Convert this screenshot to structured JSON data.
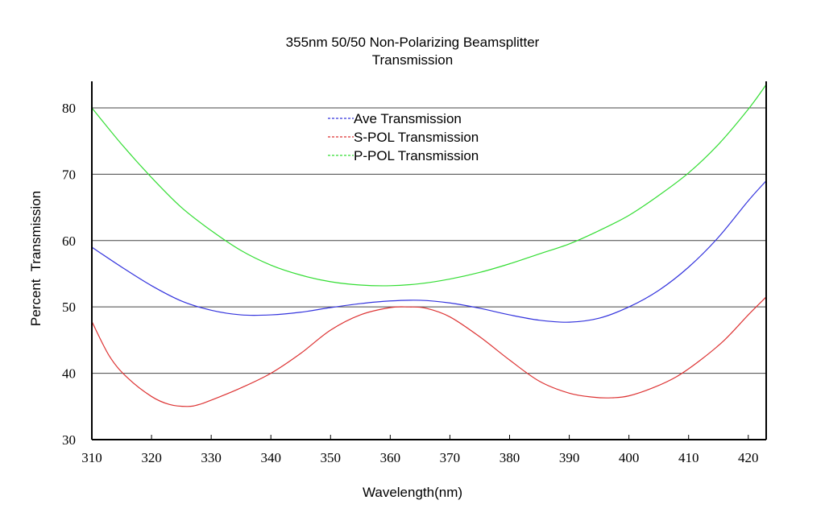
{
  "chart_data": {
    "type": "line",
    "title": "355nm 50/50 Non-Polarizing Beamsplitter",
    "subtitle": "Transmission",
    "xlabel": "Wavelength(nm)",
    "ylabel": "Percent  Transmission",
    "xlim": [
      310,
      423
    ],
    "ylim": [
      30,
      84
    ],
    "xticks": [
      310,
      320,
      330,
      340,
      350,
      360,
      370,
      380,
      390,
      400,
      410,
      420
    ],
    "yticks": [
      30,
      40,
      50,
      60,
      70,
      80
    ],
    "grid": "horizontal",
    "legend_position": "top-center",
    "series": [
      {
        "name": "Ave Transmission",
        "color": "#3333dd",
        "x": [
          310,
          315,
          320,
          325,
          330,
          335,
          340,
          345,
          350,
          355,
          360,
          365,
          370,
          375,
          380,
          385,
          390,
          395,
          400,
          405,
          410,
          415,
          420,
          423
        ],
        "y": [
          59.0,
          56.0,
          53.2,
          50.9,
          49.5,
          48.8,
          48.8,
          49.2,
          49.9,
          50.5,
          50.9,
          51.0,
          50.6,
          49.8,
          48.8,
          48.0,
          47.7,
          48.3,
          50.0,
          52.5,
          56.0,
          60.5,
          66.0,
          69.0
        ]
      },
      {
        "name": "S-POL Transmission",
        "color": "#dd3333",
        "x": [
          310,
          313,
          316,
          320,
          323,
          326,
          328,
          331,
          335,
          340,
          345,
          350,
          355,
          360,
          363,
          366,
          370,
          375,
          380,
          385,
          390,
          394,
          397,
          400,
          404,
          408,
          412,
          416,
          420,
          423
        ],
        "y": [
          47.8,
          42.5,
          39.3,
          36.5,
          35.3,
          35.0,
          35.3,
          36.3,
          37.8,
          40.0,
          43.0,
          46.5,
          48.8,
          49.9,
          50.0,
          49.8,
          48.5,
          45.5,
          42.0,
          38.8,
          37.0,
          36.4,
          36.3,
          36.6,
          37.8,
          39.5,
          42.0,
          45.0,
          48.8,
          51.5
        ]
      },
      {
        "name": "P-POL Transmission",
        "color": "#33dd33",
        "x": [
          310,
          315,
          320,
          325,
          330,
          335,
          340,
          345,
          350,
          355,
          360,
          365,
          370,
          375,
          380,
          385,
          390,
          395,
          400,
          405,
          410,
          415,
          420,
          423
        ],
        "y": [
          80.0,
          74.5,
          69.5,
          65.0,
          61.5,
          58.5,
          56.3,
          54.8,
          53.8,
          53.3,
          53.2,
          53.5,
          54.2,
          55.2,
          56.5,
          58.0,
          59.5,
          61.5,
          63.8,
          66.8,
          70.2,
          74.5,
          79.8,
          83.5
        ]
      }
    ]
  }
}
